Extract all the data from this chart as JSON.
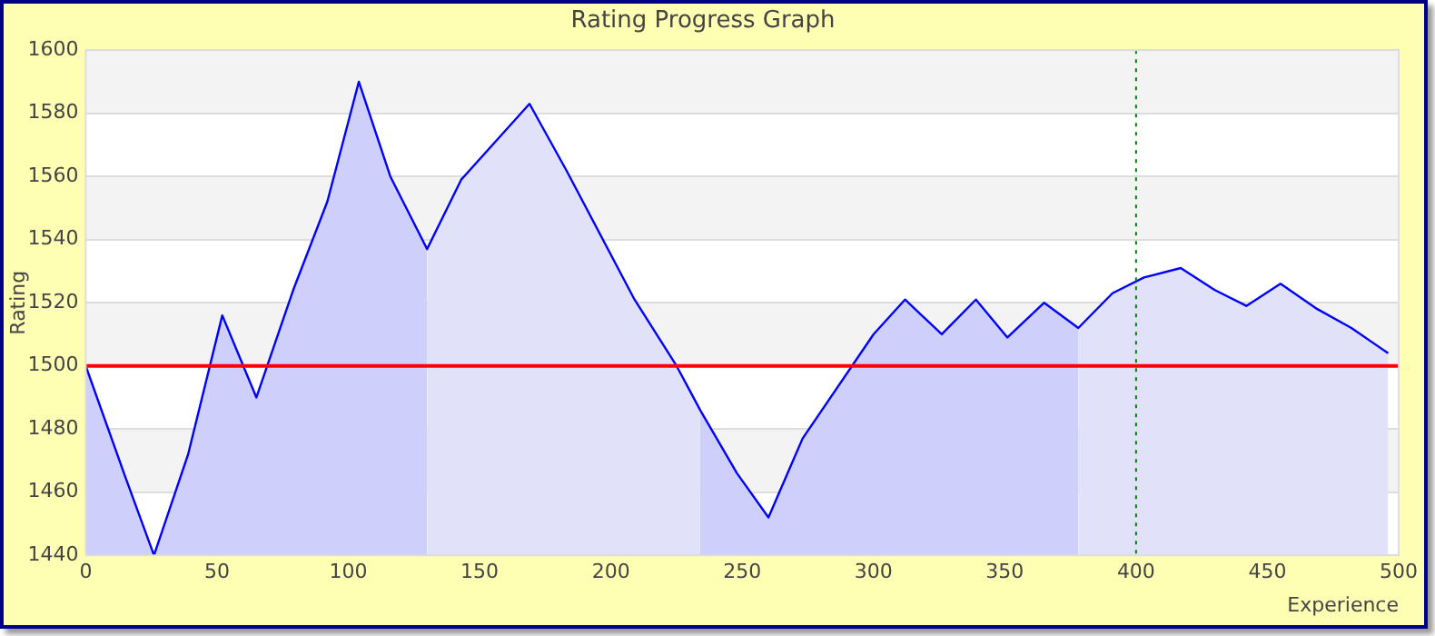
{
  "chart_data": {
    "type": "area",
    "title": "Rating Progress Graph",
    "xlabel": "Experience",
    "ylabel": "Rating",
    "xlim": [
      0,
      500
    ],
    "xticks": [
      0,
      50,
      100,
      150,
      200,
      250,
      300,
      350,
      400,
      450,
      500
    ],
    "ylim": [
      1440,
      1600
    ],
    "yticks": [
      1440,
      1460,
      1480,
      1500,
      1520,
      1540,
      1560,
      1580,
      1600
    ],
    "grid": "y",
    "legend": false,
    "series": [
      {
        "color": "#cfcffb",
        "x": [
          0,
          15,
          26,
          39,
          52,
          65,
          79,
          92,
          104,
          116,
          130
        ],
        "values": [
          1500,
          1465,
          1440,
          1472,
          1516,
          1490,
          1524,
          1552,
          1590,
          1560,
          1537
        ]
      },
      {
        "color": "#e1e1fa",
        "x": [
          130,
          143,
          169,
          183,
          209,
          225,
          234
        ],
        "values": [
          1537,
          1559,
          1583,
          1562,
          1521,
          1500,
          1486
        ]
      },
      {
        "color": "#cfcffb",
        "x": [
          234,
          248,
          260,
          273,
          300,
          312,
          326,
          339,
          351,
          365,
          378
        ],
        "values": [
          1486,
          1466,
          1452,
          1477,
          1510,
          1521,
          1510,
          1521,
          1509,
          1520,
          1512
        ]
      },
      {
        "color": "#e1e1fa",
        "x": [
          378,
          391,
          403,
          417,
          430,
          442,
          455,
          469,
          482,
          496
        ],
        "values": [
          1512,
          1523,
          1528,
          1531,
          1524,
          1519,
          1526,
          1518,
          1512,
          1504
        ]
      },
      {
        "type": "line",
        "color": "#0000ff",
        "x": [
          0,
          15,
          26,
          39,
          52,
          65,
          79,
          92,
          104,
          116,
          130,
          143,
          169,
          183,
          209,
          225,
          234,
          248,
          260,
          273,
          300,
          312,
          326,
          339,
          351,
          365,
          378,
          391,
          403,
          417,
          430,
          442,
          455,
          469,
          482,
          496
        ],
        "values": [
          1500,
          1465,
          1440,
          1472,
          1516,
          1490,
          1524,
          1552,
          1590,
          1560,
          1537,
          1559,
          1583,
          1562,
          1521,
          1500,
          1486,
          1466,
          1452,
          1477,
          1510,
          1521,
          1510,
          1521,
          1509,
          1520,
          1512,
          1523,
          1528,
          1531,
          1524,
          1519,
          1526,
          1518,
          1512,
          1504
        ]
      }
    ],
    "ref_lines": [
      {
        "axis": "y",
        "value": 1500,
        "color": "#ff0000",
        "line_style": "solid"
      },
      {
        "axis": "x",
        "value": 400,
        "color": "#008000",
        "line_style": "dotted"
      }
    ]
  }
}
